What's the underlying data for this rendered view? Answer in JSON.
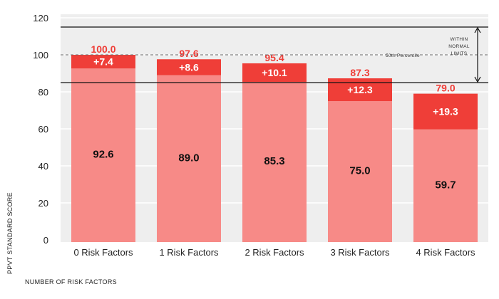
{
  "chart_data": {
    "type": "bar",
    "stacked": true,
    "categories": [
      "0 Risk Factors",
      "1 Risk Factors",
      "2 Risk Factors",
      "3 Risk Factors",
      "4 Risk Factors"
    ],
    "series": [
      {
        "values": [
          92.6,
          89.0,
          85.3,
          75.0,
          59.7
        ]
      },
      {
        "values": [
          7.4,
          8.6,
          10.1,
          12.3,
          19.3
        ]
      }
    ],
    "increment_labels": [
      "+7.4",
      "+8.6",
      "+10.1",
      "+12.3",
      "+19.3"
    ],
    "base_labels": [
      "92.6",
      "89.0",
      "85.3",
      "75.0",
      "59.7"
    ],
    "totals": [
      100.0,
      97.6,
      95.4,
      87.3,
      79.0
    ],
    "total_labels": [
      "100.0",
      "97.6",
      "95.4",
      "87.3",
      "79.0"
    ],
    "ylim": [
      0,
      120
    ],
    "yticks": [
      0,
      20,
      40,
      60,
      80,
      100,
      120
    ],
    "ylabel": "PPVT STANDARD SCORE",
    "xlabel": "NUMBER OF RISK FACTORS",
    "reference_lines": {
      "percentile_50": {
        "value": 100,
        "label": "50th Percentile"
      },
      "normal_upper": 115,
      "normal_lower": 85
    },
    "normal_range_label": [
      "WITHIN",
      "NORMAL",
      "LIMITS"
    ],
    "colors": {
      "base": "#f78a87",
      "increment": "#ef3e38",
      "total_text": "#ef3e38",
      "panel": "#eeeeee",
      "grid": "#ffffff"
    }
  }
}
